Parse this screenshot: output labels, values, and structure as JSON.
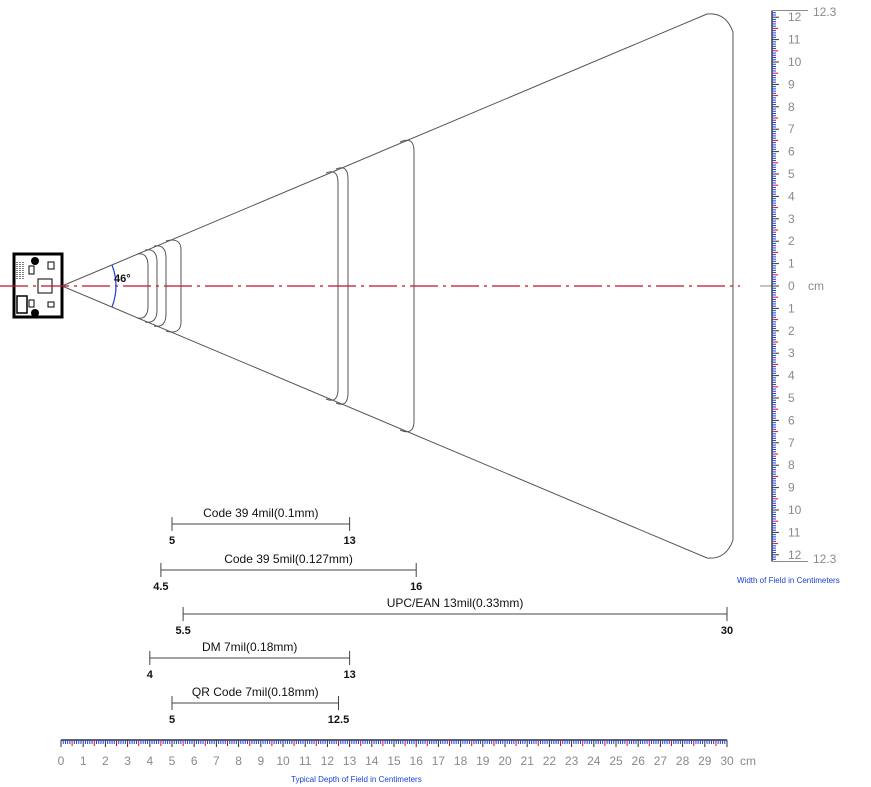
{
  "angle_label": "46°",
  "width_axis": {
    "top_end_label": "12.3",
    "bottom_end_label": "12.3",
    "unit_label": "cm",
    "caption": "Width of Field in Centimeters",
    "upper_labels": [
      "12",
      "11",
      "10",
      "9",
      "8",
      "7",
      "6",
      "5",
      "4",
      "3",
      "2",
      "1"
    ],
    "center_label": "0",
    "lower_labels": [
      "1",
      "2",
      "3",
      "4",
      "5",
      "6",
      "7",
      "8",
      "9",
      "10",
      "11",
      "12"
    ]
  },
  "depth_axis": {
    "labels": [
      "0",
      "1",
      "2",
      "3",
      "4",
      "5",
      "6",
      "7",
      "8",
      "9",
      "10",
      "11",
      "12",
      "13",
      "14",
      "15",
      "16",
      "17",
      "18",
      "19",
      "20",
      "21",
      "22",
      "23",
      "24",
      "25",
      "26",
      "27",
      "28",
      "29",
      "30"
    ],
    "unit_label": "cm",
    "caption": "Typical Depth of Field in Centimeters"
  },
  "ranges": [
    {
      "name": "Code 39  4mil(0.1mm)",
      "min_label": "5",
      "max_label": "13",
      "min": 5,
      "max": 13
    },
    {
      "name": "Code 39  5mil(0.127mm)",
      "min_label": "4.5",
      "max_label": "16",
      "min": 4.5,
      "max": 16
    },
    {
      "name": "UPC/EAN  13mil(0.33mm)",
      "min_label": "5.5",
      "max_label": "30",
      "min": 5.5,
      "max": 30
    },
    {
      "name": "DM  7mil(0.18mm)",
      "min_label": "4",
      "max_label": "13",
      "min": 4,
      "max": 13
    },
    {
      "name": "QR Code  7mil(0.18mm)",
      "min_label": "5",
      "max_label": "12.5",
      "min": 5,
      "max": 12.5
    }
  ],
  "colors": {
    "centerline": "#c8102e",
    "angle_arc": "#1b3fd6",
    "ruler_blue": "#1b3fd6",
    "ruler_red": "#c8102e",
    "outline": "#555555",
    "label_gray": "#8a8a8a"
  },
  "icons": {
    "scanner": "scanner-module-icon"
  }
}
